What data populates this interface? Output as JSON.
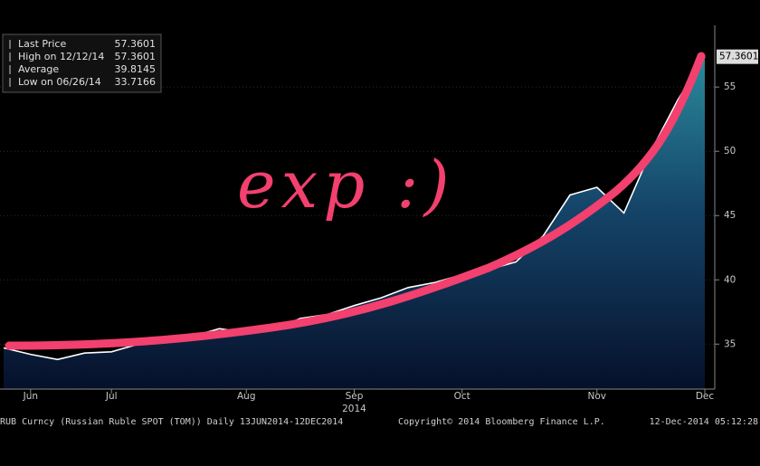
{
  "chart_data": {
    "type": "area",
    "annotation": "exp :)",
    "categories": [
      null,
      "Jun",
      null,
      null,
      "Jul",
      null,
      null,
      null,
      null,
      "Aug",
      null,
      null,
      null,
      "Sep",
      null,
      null,
      null,
      "Oct",
      null,
      null,
      null,
      null,
      "Nov",
      null,
      null,
      null,
      "Dec"
    ],
    "x_sublabel": {
      "category": 13,
      "label": "2014"
    },
    "series": [
      {
        "name": "Last Price",
        "color": "#ffffff",
        "values": [
          34.7,
          34.2,
          33.8,
          34.3,
          34.4,
          35.0,
          35.3,
          35.6,
          36.2,
          35.9,
          36.1,
          37.0,
          37.3,
          38.0,
          38.6,
          39.4,
          39.8,
          40.4,
          40.8,
          41.4,
          43.4,
          46.6,
          47.2,
          45.2,
          50.0,
          54.0,
          57.3601
        ]
      }
    ],
    "ylim": [
      31.5,
      59.8
    ],
    "yticks": [
      35,
      40,
      45,
      50,
      55
    ],
    "stats": [
      {
        "label": "Last Price",
        "value": 57.3601
      },
      {
        "label": "High on 12/12/14",
        "value": 57.3601
      },
      {
        "label": "Average",
        "value": 39.8145
      },
      {
        "label": "Low on 06/26/14",
        "value": 33.7166
      }
    ],
    "footer": {
      "security": "RUB Curncy (Russian Ruble SPOT (TOM))  Daily 13JUN2014-12DEC2014",
      "copyright": "Copyright© 2014 Bloomberg Finance L.P.",
      "timestamp": "12-Dec-2014 05:12:28"
    }
  }
}
